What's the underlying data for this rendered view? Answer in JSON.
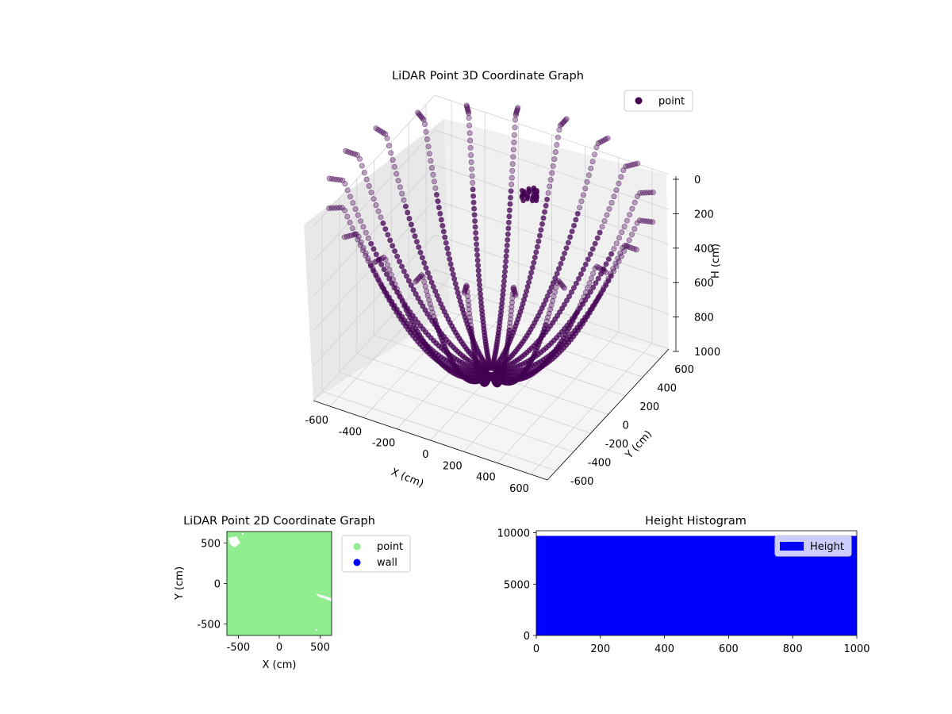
{
  "figure": {
    "background": "#ffffff"
  },
  "chart_data": [
    {
      "id": "lidar-3d",
      "type": "scatter",
      "title": "LiDAR Point 3D Coordinate Graph",
      "xlabel": "X (cm)",
      "ylabel": "Y (cm)",
      "zlabel": "H (cm)",
      "xlim": [
        -700,
        700
      ],
      "ylim": [
        -700,
        700
      ],
      "zlim": [
        0,
        1000
      ],
      "z_inverted": true,
      "x_ticks": [
        -600,
        -400,
        -200,
        0,
        200,
        400,
        600
      ],
      "y_ticks": [
        -600,
        -400,
        -200,
        0,
        200,
        400,
        600
      ],
      "z_ticks": [
        0,
        200,
        400,
        600,
        800,
        1000
      ],
      "grid": true,
      "legend": {
        "placement": "top-right",
        "entries": [
          {
            "label": "point",
            "color": "#440154"
          }
        ]
      },
      "series": [
        {
          "name": "point",
          "color": "#440154",
          "description_rays": 20,
          "rays": [
            {
              "azimuth_deg": 0
            },
            {
              "azimuth_deg": 18
            },
            {
              "azimuth_deg": 36
            },
            {
              "azimuth_deg": 54
            },
            {
              "azimuth_deg": 72
            },
            {
              "azimuth_deg": 90
            },
            {
              "azimuth_deg": 108
            },
            {
              "azimuth_deg": 126
            },
            {
              "azimuth_deg": 144
            },
            {
              "azimuth_deg": 162
            },
            {
              "azimuth_deg": 180
            },
            {
              "azimuth_deg": 198
            },
            {
              "azimuth_deg": 216
            },
            {
              "azimuth_deg": 234
            },
            {
              "azimuth_deg": 252
            },
            {
              "azimuth_deg": 270
            },
            {
              "azimuth_deg": 288
            },
            {
              "azimuth_deg": 306
            },
            {
              "azimuth_deg": 324
            },
            {
              "azimuth_deg": 342
            }
          ],
          "cluster": {
            "x": 100,
            "y": 250,
            "h": 50
          }
        }
      ]
    },
    {
      "id": "lidar-2d",
      "type": "scatter",
      "title": "LiDAR Point 2D Coordinate Graph",
      "xlabel": "X (cm)",
      "ylabel": "Y (cm)",
      "xlim": [
        -640,
        640
      ],
      "ylim": [
        -640,
        640
      ],
      "x_ticks": [
        -500,
        0,
        500
      ],
      "y_ticks": [
        500,
        0,
        -500
      ],
      "legend": {
        "placement": "outside-right",
        "entries": [
          {
            "label": "point",
            "color": "#90ee90"
          },
          {
            "label": "wall",
            "color": "#0000ff"
          }
        ]
      },
      "fill_color": "#90ee90"
    },
    {
      "id": "height-hist",
      "type": "bar",
      "title": "Height Histogram",
      "xlim": [
        0,
        1000
      ],
      "ylim": [
        0,
        10200
      ],
      "x_ticks": [
        0,
        200,
        400,
        600,
        800,
        1000
      ],
      "y_ticks": [
        0,
        5000,
        10000
      ],
      "bar_color": "#0000ff",
      "bar_value": 9700,
      "bar_range": [
        0,
        1000
      ],
      "legend": {
        "placement": "top-right",
        "entries": [
          {
            "label": "Height",
            "color": "#0000ff"
          }
        ]
      }
    }
  ]
}
